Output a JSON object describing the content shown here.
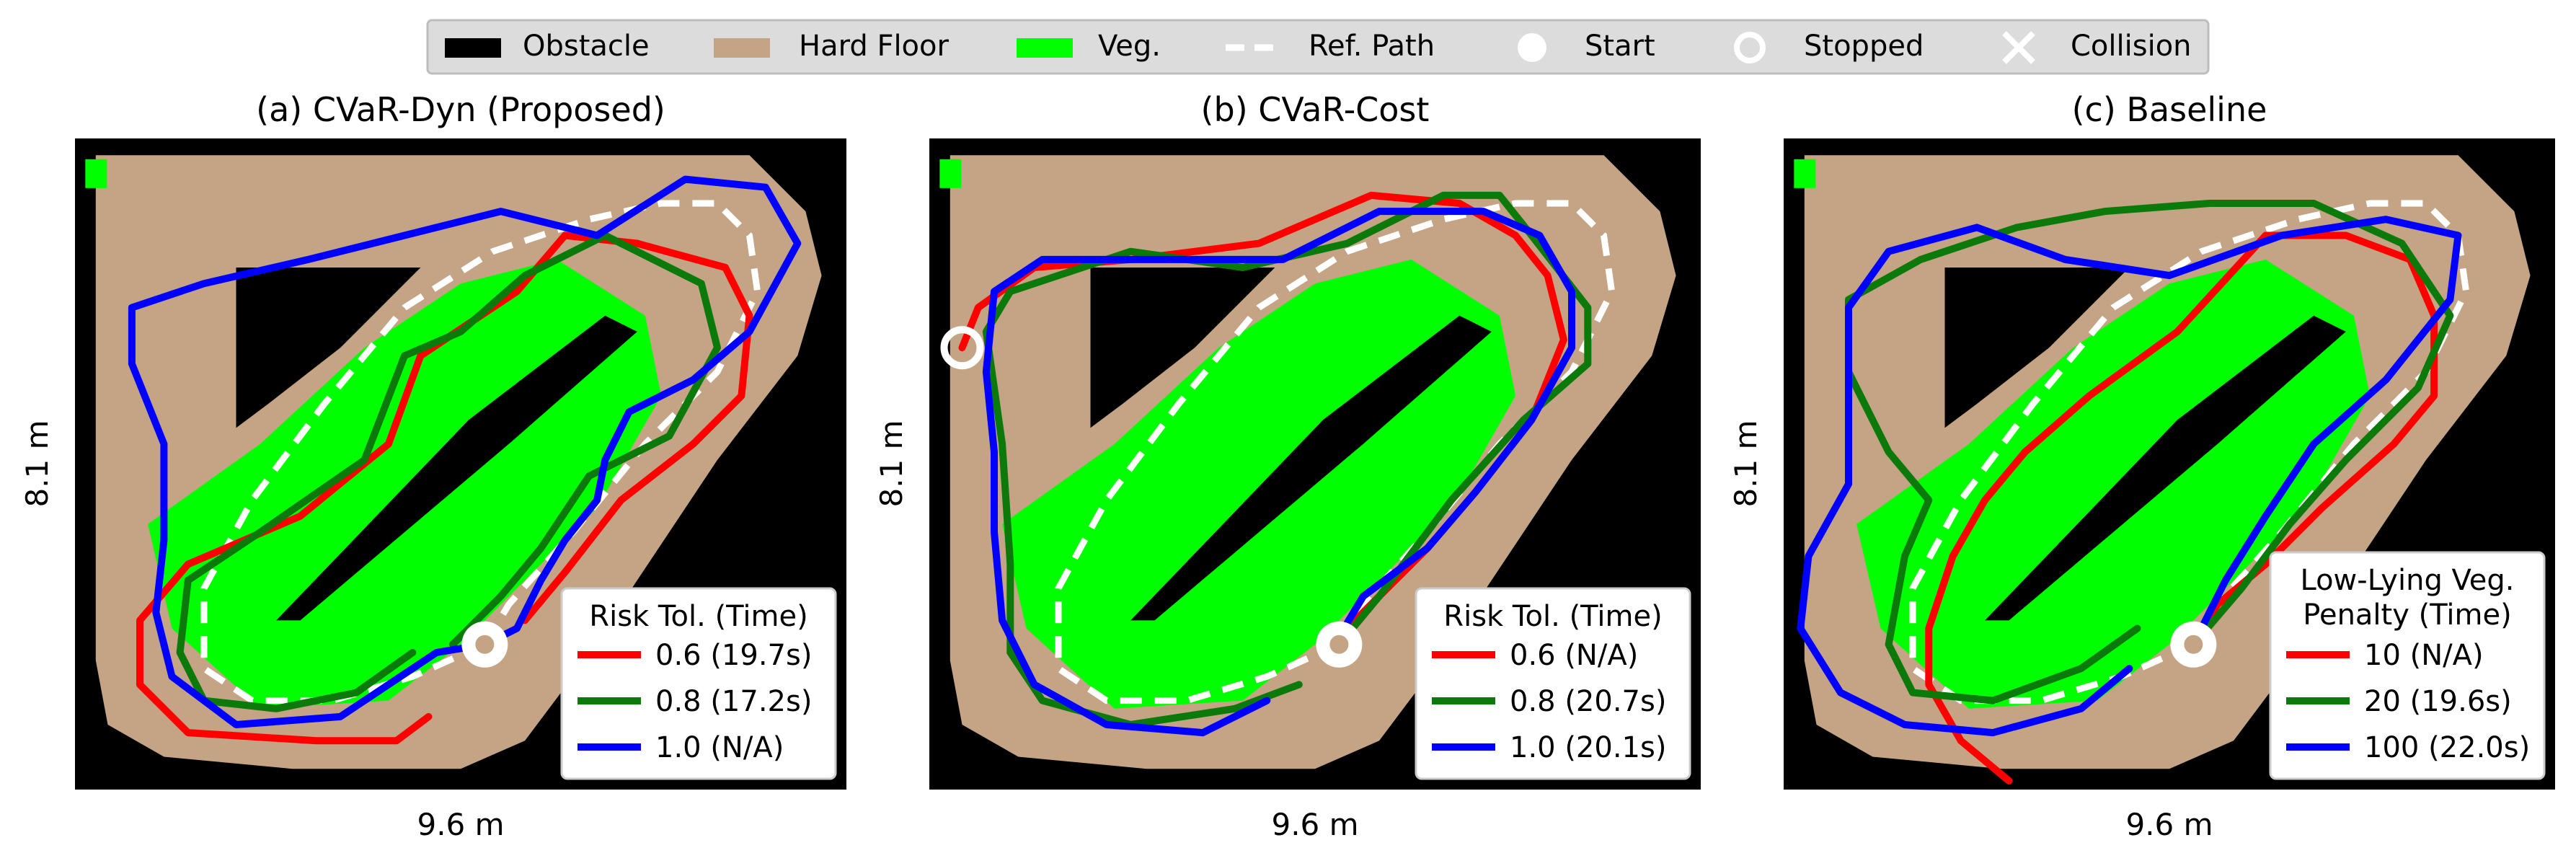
{
  "legend": {
    "items": [
      {
        "label": "Obstacle",
        "kind": "patch",
        "color": "#000000"
      },
      {
        "label": "Hard Floor",
        "kind": "patch",
        "color": "#c4a484"
      },
      {
        "label": "Veg.",
        "kind": "patch",
        "color": "#00ff00"
      },
      {
        "label": "Ref. Path",
        "kind": "dashed-line",
        "color": "#ffffff"
      },
      {
        "label": "Start",
        "kind": "filled-circle",
        "color": "#ffffff"
      },
      {
        "label": "Stopped",
        "kind": "hollow-circle",
        "color": "#ffffff"
      },
      {
        "label": "Collision",
        "kind": "x-marker",
        "color": "#ffffff"
      }
    ]
  },
  "colors": {
    "obstacle": "#000000",
    "hard_floor": "#c4a484",
    "veg": "#00ff00",
    "ref_path": "#ffffff",
    "series": [
      "#ff0000",
      "#0b7a0b",
      "#0000ff"
    ],
    "legend_bg": "#dcdcdc"
  },
  "chart_data": [
    {
      "type": "line",
      "title": "(a) CVaR-Dyn (Proposed)",
      "xlabel": "9.6 m",
      "ylabel": "8.1 m",
      "legend": {
        "title": "Risk Tol. (Time)",
        "placement": "lower-right"
      },
      "series": [
        {
          "name": "0.6 (19.7s)",
          "color": "#ff0000",
          "end": "none",
          "points": [
            [
              4.4,
              0.9
            ],
            [
              4.0,
              0.6
            ],
            [
              3.0,
              0.6
            ],
            [
              1.4,
              0.7
            ],
            [
              0.8,
              1.3
            ],
            [
              0.8,
              2.1
            ],
            [
              1.4,
              2.8
            ],
            [
              2.8,
              3.4
            ],
            [
              3.9,
              4.3
            ],
            [
              4.3,
              5.4
            ],
            [
              4.9,
              5.8
            ],
            [
              5.5,
              6.2
            ],
            [
              6.1,
              6.9
            ],
            [
              7.0,
              6.8
            ],
            [
              8.1,
              6.5
            ],
            [
              8.4,
              5.9
            ],
            [
              8.3,
              4.9
            ],
            [
              7.7,
              4.3
            ],
            [
              6.8,
              3.6
            ],
            [
              6.1,
              2.7
            ],
            [
              5.6,
              2.1
            ]
          ]
        },
        {
          "name": "0.8 (17.2s)",
          "color": "#0b7a0b",
          "end": "none",
          "points": [
            [
              4.2,
              1.7
            ],
            [
              3.5,
              1.2
            ],
            [
              2.5,
              1.0
            ],
            [
              1.6,
              1.1
            ],
            [
              1.3,
              1.7
            ],
            [
              1.4,
              2.6
            ],
            [
              2.3,
              3.2
            ],
            [
              3.6,
              4.1
            ],
            [
              4.1,
              5.4
            ],
            [
              4.8,
              5.7
            ],
            [
              5.6,
              6.4
            ],
            [
              6.6,
              6.9
            ],
            [
              7.8,
              6.3
            ],
            [
              8.0,
              5.5
            ],
            [
              7.4,
              4.4
            ],
            [
              6.4,
              3.9
            ],
            [
              5.8,
              3.0
            ],
            [
              5.3,
              2.4
            ],
            [
              4.7,
              1.8
            ]
          ]
        },
        {
          "name": "1.0 (N/A)",
          "color": "#0000ff",
          "end": "collision",
          "points": [
            [
              5.1,
              1.8
            ],
            [
              4.5,
              1.7
            ],
            [
              3.3,
              0.9
            ],
            [
              2.0,
              0.8
            ],
            [
              1.2,
              1.4
            ],
            [
              1.0,
              2.2
            ],
            [
              1.1,
              3.1
            ],
            [
              1.1,
              4.3
            ],
            [
              0.7,
              5.3
            ],
            [
              0.7,
              6.0
            ],
            [
              1.6,
              6.3
            ],
            [
              2.9,
              6.6
            ],
            [
              4.1,
              6.9
            ],
            [
              5.3,
              7.2
            ],
            [
              6.5,
              6.9
            ],
            [
              7.6,
              7.6
            ],
            [
              8.6,
              7.5
            ],
            [
              9.0,
              6.8
            ],
            [
              8.4,
              5.7
            ],
            [
              7.7,
              5.1
            ],
            [
              6.9,
              4.7
            ],
            [
              6.6,
              4.1
            ],
            [
              6.5,
              3.6
            ],
            [
              6.1,
              3.1
            ],
            [
              5.8,
              2.6
            ],
            [
              5.5,
              2.0
            ],
            [
              5.1,
              1.8
            ]
          ]
        }
      ]
    },
    {
      "type": "line",
      "title": "(b) CVaR-Cost",
      "xlabel": "9.6 m",
      "ylabel": "8.1 m",
      "legend": {
        "title": "Risk Tol. (Time)",
        "placement": "lower-right"
      },
      "series": [
        {
          "name": "0.6 (N/A)",
          "color": "#ff0000",
          "end": "stopped",
          "points": [
            [
              5.1,
              1.9
            ],
            [
              5.6,
              2.4
            ],
            [
              6.2,
              3.0
            ],
            [
              6.8,
              3.7
            ],
            [
              7.5,
              4.6
            ],
            [
              7.9,
              5.6
            ],
            [
              7.7,
              6.4
            ],
            [
              7.3,
              6.9
            ],
            [
              6.6,
              7.3
            ],
            [
              5.5,
              7.4
            ],
            [
              4.1,
              6.8
            ],
            [
              2.5,
              6.6
            ],
            [
              1.3,
              6.5
            ],
            [
              0.6,
              6.0
            ],
            [
              0.4,
              5.5
            ]
          ]
        },
        {
          "name": "0.8 (20.7s)",
          "color": "#0b7a0b",
          "end": "none",
          "points": [
            [
              4.6,
              1.3
            ],
            [
              3.8,
              1.0
            ],
            [
              2.5,
              0.8
            ],
            [
              1.4,
              1.1
            ],
            [
              1.0,
              1.7
            ],
            [
              1.0,
              2.8
            ],
            [
              0.9,
              4.3
            ],
            [
              0.7,
              5.7
            ],
            [
              1.0,
              6.2
            ],
            [
              2.5,
              6.7
            ],
            [
              3.9,
              6.5
            ],
            [
              5.2,
              6.8
            ],
            [
              6.4,
              7.4
            ],
            [
              7.1,
              7.4
            ],
            [
              7.5,
              6.9
            ],
            [
              8.2,
              6.0
            ],
            [
              8.2,
              5.3
            ],
            [
              7.4,
              4.6
            ],
            [
              6.5,
              3.6
            ],
            [
              5.6,
              2.4
            ],
            [
              5.1,
              1.8
            ]
          ]
        },
        {
          "name": "1.0 (20.1s)",
          "color": "#0000ff",
          "end": "none",
          "points": [
            [
              5.1,
              1.9
            ],
            [
              5.4,
              2.4
            ],
            [
              6.2,
              3.0
            ],
            [
              6.8,
              3.7
            ],
            [
              7.5,
              4.6
            ],
            [
              8.0,
              5.5
            ],
            [
              8.0,
              6.2
            ],
            [
              7.6,
              6.9
            ],
            [
              6.9,
              7.2
            ],
            [
              5.6,
              7.2
            ],
            [
              4.4,
              6.6
            ],
            [
              3.0,
              6.6
            ],
            [
              1.4,
              6.6
            ],
            [
              0.8,
              6.2
            ],
            [
              0.7,
              5.2
            ],
            [
              0.8,
              4.2
            ],
            [
              0.8,
              3.2
            ],
            [
              0.9,
              2.1
            ],
            [
              1.3,
              1.3
            ],
            [
              2.2,
              0.8
            ],
            [
              3.4,
              0.7
            ],
            [
              4.2,
              1.1
            ]
          ]
        }
      ]
    },
    {
      "type": "line",
      "title": "(c) Baseline",
      "xlabel": "9.6 m",
      "ylabel": "8.1 m",
      "legend": {
        "title": "Low-Lying Veg.\nPenalty (Time)",
        "placement": "lower-right"
      },
      "series": [
        {
          "name": "10 (N/A)",
          "color": "#ff0000",
          "end": "collision",
          "points": [
            [
              2.8,
              0.1
            ],
            [
              2.2,
              0.6
            ],
            [
              1.8,
              1.3
            ],
            [
              1.8,
              2.0
            ],
            [
              2.1,
              2.9
            ],
            [
              2.5,
              3.6
            ],
            [
              3.0,
              4.2
            ],
            [
              3.8,
              4.9
            ],
            [
              4.9,
              5.7
            ],
            [
              6.0,
              6.9
            ],
            [
              7.0,
              6.9
            ],
            [
              7.8,
              6.6
            ],
            [
              8.1,
              5.9
            ],
            [
              8.1,
              4.9
            ],
            [
              7.6,
              4.3
            ],
            [
              6.7,
              3.5
            ],
            [
              6.0,
              2.8
            ],
            [
              5.4,
              2.3
            ],
            [
              5.1,
              1.8
            ]
          ]
        },
        {
          "name": "20 (19.6s)",
          "color": "#0b7a0b",
          "end": "none",
          "points": [
            [
              4.4,
              2.0
            ],
            [
              3.7,
              1.5
            ],
            [
              2.6,
              1.1
            ],
            [
              1.6,
              1.2
            ],
            [
              1.3,
              1.8
            ],
            [
              1.5,
              2.9
            ],
            [
              1.8,
              3.6
            ],
            [
              1.3,
              4.2
            ],
            [
              0.8,
              5.2
            ],
            [
              0.8,
              6.1
            ],
            [
              1.7,
              6.6
            ],
            [
              2.9,
              7.0
            ],
            [
              4.0,
              7.2
            ],
            [
              5.3,
              7.3
            ],
            [
              6.6,
              7.3
            ],
            [
              7.7,
              6.8
            ],
            [
              8.3,
              5.9
            ],
            [
              7.9,
              5.0
            ],
            [
              7.0,
              4.1
            ],
            [
              6.3,
              3.3
            ],
            [
              5.7,
              2.5
            ],
            [
              5.1,
              1.8
            ]
          ]
        },
        {
          "name": "100 (22.0s)",
          "color": "#0000ff",
          "end": "none",
          "points": [
            [
              4.3,
              1.5
            ],
            [
              3.7,
              1.0
            ],
            [
              2.6,
              0.7
            ],
            [
              1.5,
              0.8
            ],
            [
              0.7,
              1.2
            ],
            [
              0.2,
              2.0
            ],
            [
              0.3,
              2.9
            ],
            [
              0.8,
              3.8
            ],
            [
              0.8,
              4.9
            ],
            [
              0.8,
              6.0
            ],
            [
              1.3,
              6.7
            ],
            [
              2.4,
              7.0
            ],
            [
              3.5,
              6.6
            ],
            [
              4.8,
              6.4
            ],
            [
              6.2,
              6.9
            ],
            [
              7.5,
              7.1
            ],
            [
              8.4,
              6.9
            ],
            [
              8.3,
              6.1
            ],
            [
              7.5,
              5.1
            ],
            [
              6.6,
              4.3
            ],
            [
              6.0,
              3.4
            ],
            [
              5.5,
              2.6
            ],
            [
              5.1,
              1.8
            ]
          ]
        }
      ]
    }
  ],
  "common": {
    "x_range": [
      0,
      9.6
    ],
    "y_range": [
      0,
      8.1
    ],
    "start": [
      5.1,
      1.8
    ],
    "ref_path": [
      [
        5.1,
        1.8
      ],
      [
        4.2,
        1.4
      ],
      [
        3.2,
        1.1
      ],
      [
        2.2,
        1.1
      ],
      [
        1.6,
        1.5
      ],
      [
        1.6,
        2.5
      ],
      [
        2.2,
        3.6
      ],
      [
        3.1,
        4.8
      ],
      [
        4.1,
        6.0
      ],
      [
        5.2,
        6.7
      ],
      [
        6.4,
        7.1
      ],
      [
        7.3,
        7.3
      ],
      [
        8.0,
        7.3
      ],
      [
        8.4,
        6.9
      ],
      [
        8.5,
        6.2
      ],
      [
        8.0,
        5.2
      ],
      [
        7.1,
        4.3
      ],
      [
        6.2,
        3.2
      ],
      [
        5.4,
        2.3
      ],
      [
        5.1,
        1.8
      ]
    ]
  }
}
